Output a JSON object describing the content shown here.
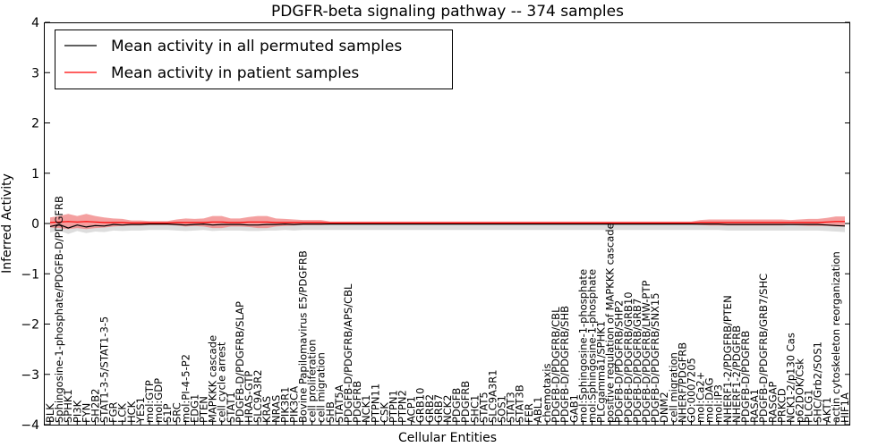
{
  "chart_data": {
    "type": "line",
    "title": "PDGFR-beta signaling pathway -- 374 samples",
    "xlabel": "Cellular Entities",
    "ylabel": "Inferred Activity",
    "ylim": [
      -4,
      4
    ],
    "yticks": [
      -4,
      -3,
      -2,
      -1,
      0,
      1,
      2,
      3,
      4
    ],
    "legend_position": "top-left",
    "grid": false,
    "categories": [
      "BLK",
      "Sphingosine-1-phosphate/PDGFB-D/PDGFRB",
      "SPHK1",
      "PI3K",
      "FYN",
      "SH2B2",
      "STAT1-3-5/STAT1-3-5",
      "FGR",
      "LCK",
      "HCK",
      "YES1",
      "mol:GTP",
      "mol:GDP",
      "S1P",
      "SRC",
      "mol:PI-4-5-P2",
      "EDG1",
      "PTEN",
      "MAPKKK cascade",
      "cell cycle arrest",
      "STAT1",
      "PDGFB-D/PDGFRB/SLAP",
      "HRAS-GTP",
      "SLC9A3R2",
      "KRAS",
      "NRAS",
      "PIK3R1",
      "PIK3CA",
      "Bovine Papilomavirus E5/PDGFRB",
      "cell proliferation",
      "cell migration",
      "SHB",
      "STAT5A",
      "PDGFB-D/PDGFRB/APS/CBL",
      "PDGFRB",
      "NCK1",
      "PTPN11",
      "CSK",
      "PTPN1",
      "PTPN2",
      "ACP1",
      "GRB10",
      "GRB2",
      "GRB7",
      "NCK2",
      "PDGFB",
      "PDGFRB",
      "SHC1",
      "STAT5",
      "SLC9A3R1",
      "SOS1",
      "STAT3",
      "STAT3B",
      "FER",
      "ABL1",
      "chemotaxis",
      "PDGFB-D/PDGFRB/CBL",
      "PDGFB-D/PDGFRB/SHB",
      "GAB1",
      "mol:Sphingosine-1-phosphate",
      "mol:Sphingosine-1-phosphate",
      "PLCgamma1/SPHK1",
      "positive regulation of MAPKKK cascade",
      "PDGFB-D/PDGFRB/SHP2",
      "PDGFB-D/PDGFRB/GRB10",
      "PDGFB-D/PDGFRB/GRB7",
      "PDGFB-D/PDGFRB/LMW-PTP",
      "PDGFB-D/PDGFRB/SNX15",
      "DNM2",
      "cell migration",
      "NHERF/PDGFRB",
      "GO:0007205",
      "mol:Ca2+",
      "mol:DAG",
      "mol:IP3",
      "NHERF1-2/PDGFRB/PTEN",
      "NHERF1-2/PDGFRB",
      "PDGFB-D/PDGFRB",
      "RASA1",
      "PDGFB-D/PDGFRB/GRB7/SHC",
      "RASGAP",
      "PRKCD",
      "NCK1-2/p130 Cas",
      "p62DOK/Csk",
      "PLCG1",
      "SHC/Grb2/SOS1",
      "AKT1",
      "actin cytoskeleton reorganization",
      "HIF1A"
    ],
    "series": [
      {
        "name": "Mean activity in all permuted samples",
        "color": "#000000",
        "values": [
          -0.06,
          -0.02,
          -0.09,
          -0.03,
          -0.07,
          -0.04,
          -0.05,
          -0.02,
          -0.03,
          -0.02,
          -0.02,
          -0.01,
          -0.01,
          -0.01,
          -0.02,
          -0.03,
          -0.02,
          -0.01,
          -0.03,
          -0.02,
          -0.02,
          -0.02,
          -0.03,
          -0.03,
          -0.02,
          -0.02,
          -0.01,
          -0.02,
          -0.01,
          -0.01,
          -0.01,
          -0.01,
          -0.01,
          -0.01,
          -0.01,
          -0.01,
          -0.01,
          -0.01,
          -0.01,
          -0.01,
          -0.01,
          -0.01,
          -0.01,
          -0.01,
          -0.01,
          -0.01,
          -0.01,
          -0.01,
          -0.01,
          -0.01,
          -0.01,
          -0.01,
          -0.01,
          -0.01,
          -0.01,
          -0.01,
          -0.01,
          -0.01,
          -0.01,
          -0.01,
          -0.01,
          -0.01,
          -0.01,
          -0.01,
          -0.01,
          -0.01,
          -0.01,
          -0.01,
          -0.01,
          -0.01,
          -0.01,
          -0.01,
          -0.01,
          -0.01,
          -0.01,
          -0.02,
          -0.02,
          -0.02,
          -0.02,
          -0.02,
          -0.02,
          -0.02,
          -0.02,
          -0.02,
          -0.02,
          -0.02,
          -0.03,
          -0.04,
          -0.05
        ]
      },
      {
        "name": "Mean activity in patient samples",
        "color": "#ff0000",
        "values": [
          0.02,
          0.03,
          0.04,
          0.03,
          0.04,
          0.03,
          0.02,
          0.02,
          0.02,
          0.01,
          0.01,
          0.01,
          0.01,
          0.01,
          0.02,
          0.02,
          0.02,
          0.02,
          0.03,
          0.03,
          0.02,
          0.02,
          0.03,
          0.03,
          0.03,
          0.02,
          0.02,
          0.02,
          0.02,
          0.02,
          0.02,
          0.01,
          0.01,
          0.01,
          0.01,
          0.01,
          0.01,
          0.01,
          0.01,
          0.01,
          0.01,
          0.01,
          0.01,
          0.01,
          0.01,
          0.01,
          0.01,
          0.01,
          0.01,
          0.01,
          0.01,
          0.01,
          0.01,
          0.01,
          0.01,
          0.01,
          0.01,
          0.01,
          0.01,
          0.01,
          0.01,
          0.01,
          0.01,
          0.01,
          0.01,
          0.01,
          0.01,
          0.01,
          0.01,
          0.01,
          0.01,
          0.01,
          0.02,
          0.02,
          0.02,
          0.02,
          0.02,
          0.02,
          0.02,
          0.02,
          0.02,
          0.02,
          0.02,
          0.02,
          0.02,
          0.02,
          0.03,
          0.04,
          0.04
        ]
      }
    ],
    "bands": [
      {
        "name": "permuted spread",
        "color": "#bbbbbb",
        "lower_offset": -0.12,
        "upper_offset": 0.03
      },
      {
        "name": "patient spread",
        "color": "#f08080",
        "half_width": [
          0.1,
          0.12,
          0.15,
          0.12,
          0.15,
          0.12,
          0.1,
          0.08,
          0.07,
          0.05,
          0.05,
          0.04,
          0.04,
          0.04,
          0.06,
          0.08,
          0.07,
          0.08,
          0.12,
          0.12,
          0.08,
          0.08,
          0.1,
          0.12,
          0.12,
          0.08,
          0.07,
          0.06,
          0.05,
          0.05,
          0.05,
          0.03,
          0.03,
          0.03,
          0.03,
          0.03,
          0.03,
          0.03,
          0.03,
          0.03,
          0.03,
          0.03,
          0.03,
          0.03,
          0.03,
          0.03,
          0.03,
          0.03,
          0.03,
          0.03,
          0.03,
          0.03,
          0.03,
          0.03,
          0.03,
          0.03,
          0.03,
          0.03,
          0.03,
          0.03,
          0.03,
          0.03,
          0.03,
          0.03,
          0.03,
          0.03,
          0.03,
          0.03,
          0.03,
          0.03,
          0.03,
          0.03,
          0.05,
          0.06,
          0.06,
          0.06,
          0.06,
          0.06,
          0.06,
          0.06,
          0.06,
          0.06,
          0.05,
          0.06,
          0.07,
          0.07,
          0.08,
          0.1,
          0.1
        ]
      }
    ]
  }
}
